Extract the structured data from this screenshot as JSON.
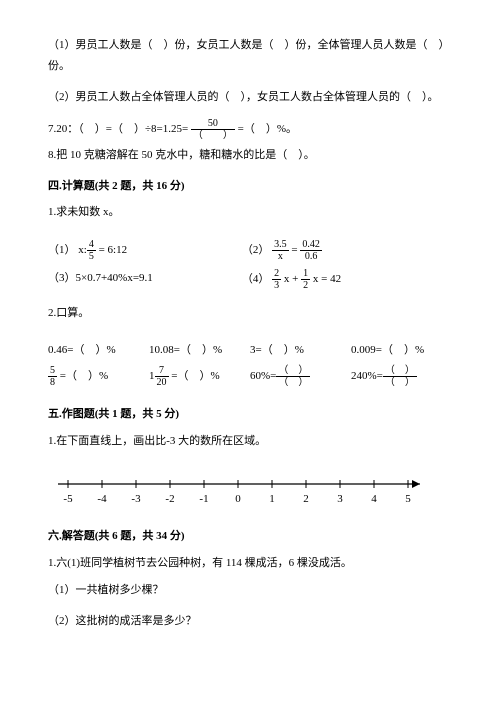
{
  "q1_1": "（1）男员工人数是（　）份，女员工人数是（　）份，全体管理人员人数是（　）份。",
  "q1_2": "（2）男员工人数占全体管理人员的（　），女员工人数占全体管理人员的（　）。",
  "q7_a": "7.20：（　）=（　）÷8=1.25=",
  "q7_b": "=（　）%。",
  "q7_num": "50",
  "q7_den": "（　　）",
  "q8": "8.把 10 克糖溶解在 50 克水中，糖和糖水的比是（　）。",
  "s4_title": "四.计算题(共 2 题，共 16 分)",
  "s4_1": "1.求未知数 x。",
  "eq1_a": "（1）",
  "eq1_x": "x:",
  "eq1_n": "4",
  "eq1_d": "5",
  "eq1_r": "= 6:12",
  "eq2_a": "（2）",
  "eq2_n1": "3.5",
  "eq2_d1": "x",
  "eq2_eq": "=",
  "eq2_n2": "0.42",
  "eq2_d2": "0.6",
  "eq3": "（3）5×0.7+40%x=9.1",
  "eq4_a": "（4）",
  "eq4_n1": "2",
  "eq4_d1": "3",
  "eq4_m1": "x +",
  "eq4_n2": "1",
  "eq4_d2": "2",
  "eq4_m2": "x = 42",
  "s4_2": "2.口算。",
  "c1": "0.46=（　）%",
  "c2": "10.08=（　）%",
  "c3": "3=（　）%",
  "c4": "0.009=（　）%",
  "c5a_n": "5",
  "c5a_d": "8",
  "c5b": " =（　）%",
  "c6a": "1",
  "c6a_n": "7",
  "c6a_d": "20",
  "c6b": " =（　）%",
  "c7a": "60%=",
  "c7_n": "（　）",
  "c7_d": "（　）",
  "c8a": "240%=",
  "c8_n": "（　）",
  "c8_d": "（　）",
  "s5_title": "五.作图题(共 1 题，共 5 分)",
  "s5_1": "1.在下面直线上，画出比-3 大的数所在区域。",
  "ticks": [
    "-5",
    "-4",
    "-3",
    "-2",
    "-1",
    "0",
    "1",
    "2",
    "3",
    "4",
    "5"
  ],
  "s6_title": "六.解答题(共 6 题，共 34 分)",
  "s6_1": "1.六(1)班同学植树节去公园种树，有 114 棵成活，6 棵没成活。",
  "s6_1_1": "（1）一共植树多少棵？",
  "s6_1_2": "（2）这批树的成活率是多少？"
}
